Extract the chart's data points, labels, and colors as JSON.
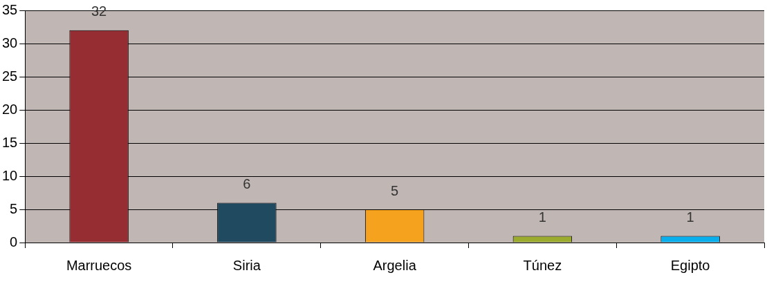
{
  "chart_data": {
    "type": "bar",
    "categories": [
      "Marruecos",
      "Siria",
      "Argelia",
      "Túnez",
      "Egipto"
    ],
    "values": [
      32,
      6,
      5,
      1,
      1
    ],
    "colors": [
      "#952d32",
      "#1f4a60",
      "#f5a31e",
      "#9aab2e",
      "#09aeed"
    ],
    "ylim": [
      0,
      35
    ],
    "yticks": [
      0,
      5,
      10,
      15,
      20,
      25,
      30,
      35
    ],
    "grid": "y",
    "data_labels": true
  }
}
